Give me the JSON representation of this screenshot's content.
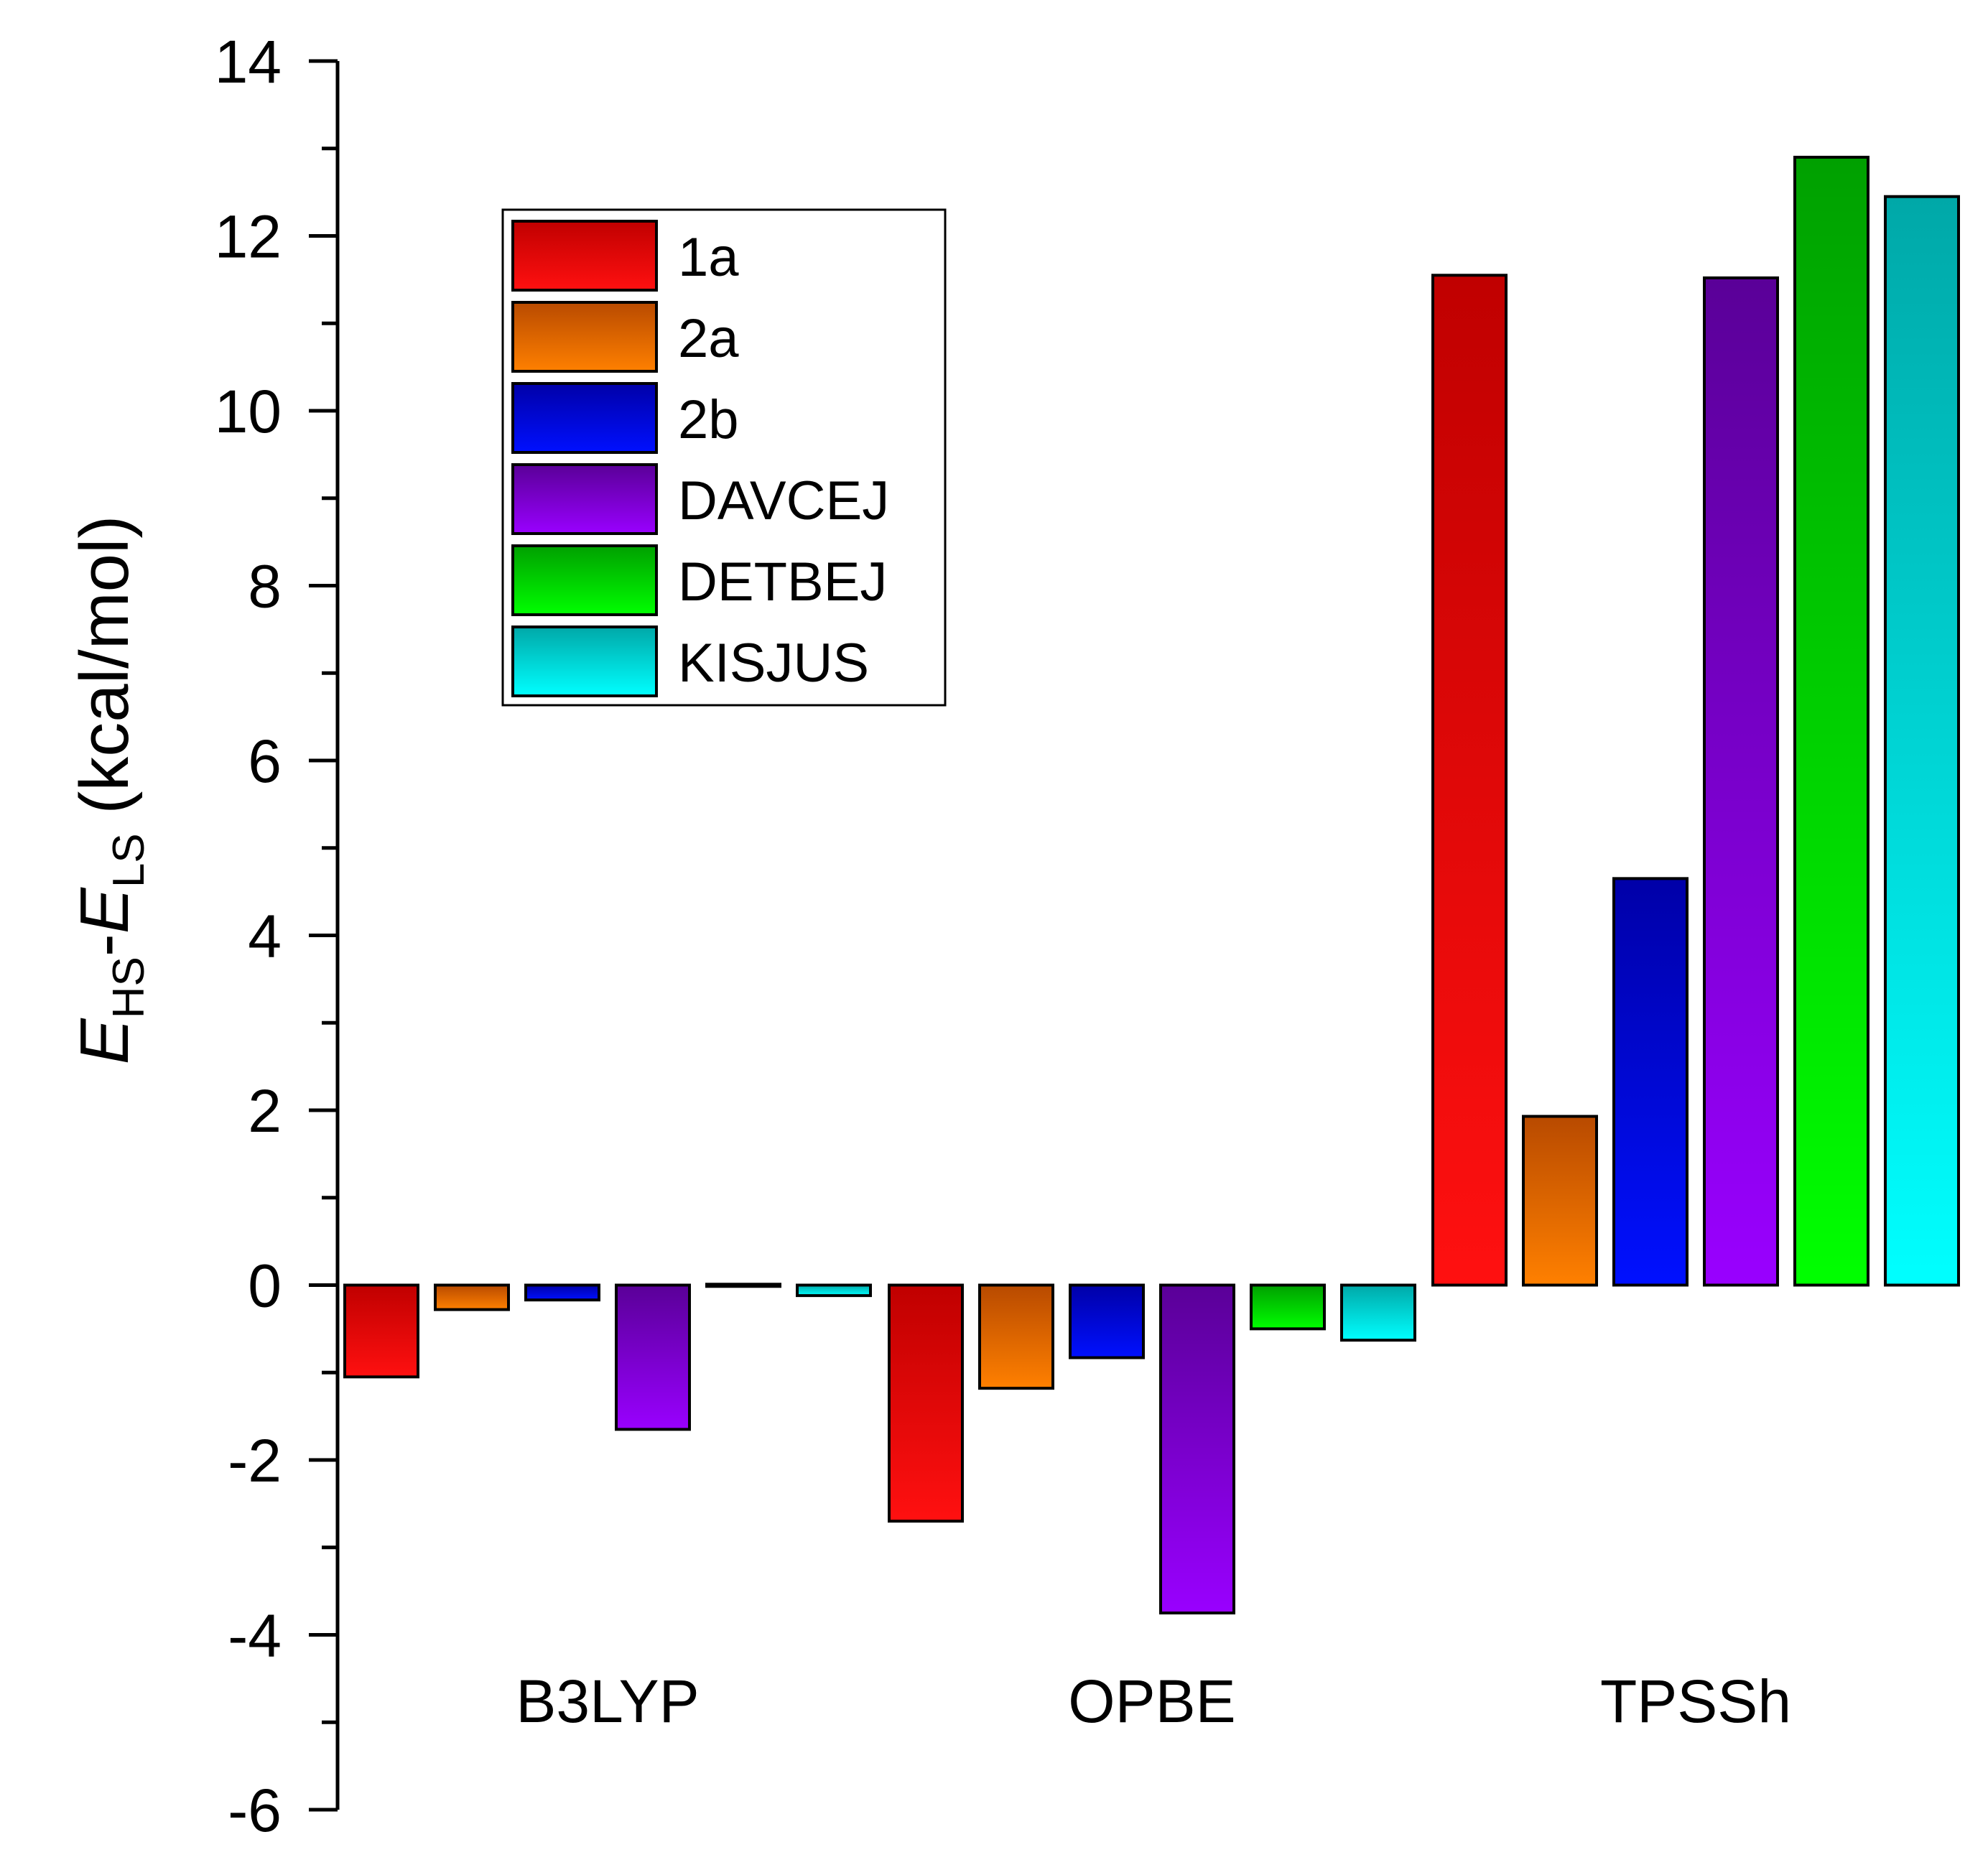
{
  "chart_data": {
    "type": "bar",
    "title": "",
    "xlabel": "",
    "ylabel": {
      "text": "EHS-ELS (kcal/mol)",
      "e1": "E",
      "sub1": "HS",
      "dash": "-",
      "e2": "E",
      "sub2": "LS",
      "units": " (kcal/mol)"
    },
    "ylim": [
      -6,
      14
    ],
    "yticks": [
      -6,
      -4,
      -2,
      0,
      2,
      4,
      6,
      8,
      10,
      12,
      14
    ],
    "grid": false,
    "legend_position": "top-left",
    "categories": [
      "B3LYP",
      "OPBE",
      "TPSSh"
    ],
    "series": [
      {
        "name": "1a",
        "values": [
          -1.05,
          -2.7,
          11.55
        ],
        "color_top": "#c00000",
        "color_bottom": "#ff1010"
      },
      {
        "name": "2a",
        "values": [
          -0.28,
          -1.18,
          1.93
        ],
        "color_top": "#b84a00",
        "color_bottom": "#ff8000"
      },
      {
        "name": "2b",
        "values": [
          -0.17,
          -0.83,
          4.65
        ],
        "color_top": "#0000a8",
        "color_bottom": "#0010ff"
      },
      {
        "name": "DAVCEJ",
        "values": [
          -1.65,
          -3.75,
          11.52
        ],
        "color_top": "#5a0098",
        "color_bottom": "#9900ff"
      },
      {
        "name": "DETBEJ",
        "values": [
          0.01,
          -0.5,
          12.9
        ],
        "color_top": "#00a000",
        "color_bottom": "#00ff00"
      },
      {
        "name": "KISJUS",
        "values": [
          -0.12,
          -0.63,
          12.45
        ],
        "color_top": "#00a8a8",
        "color_bottom": "#00ffff"
      }
    ]
  }
}
